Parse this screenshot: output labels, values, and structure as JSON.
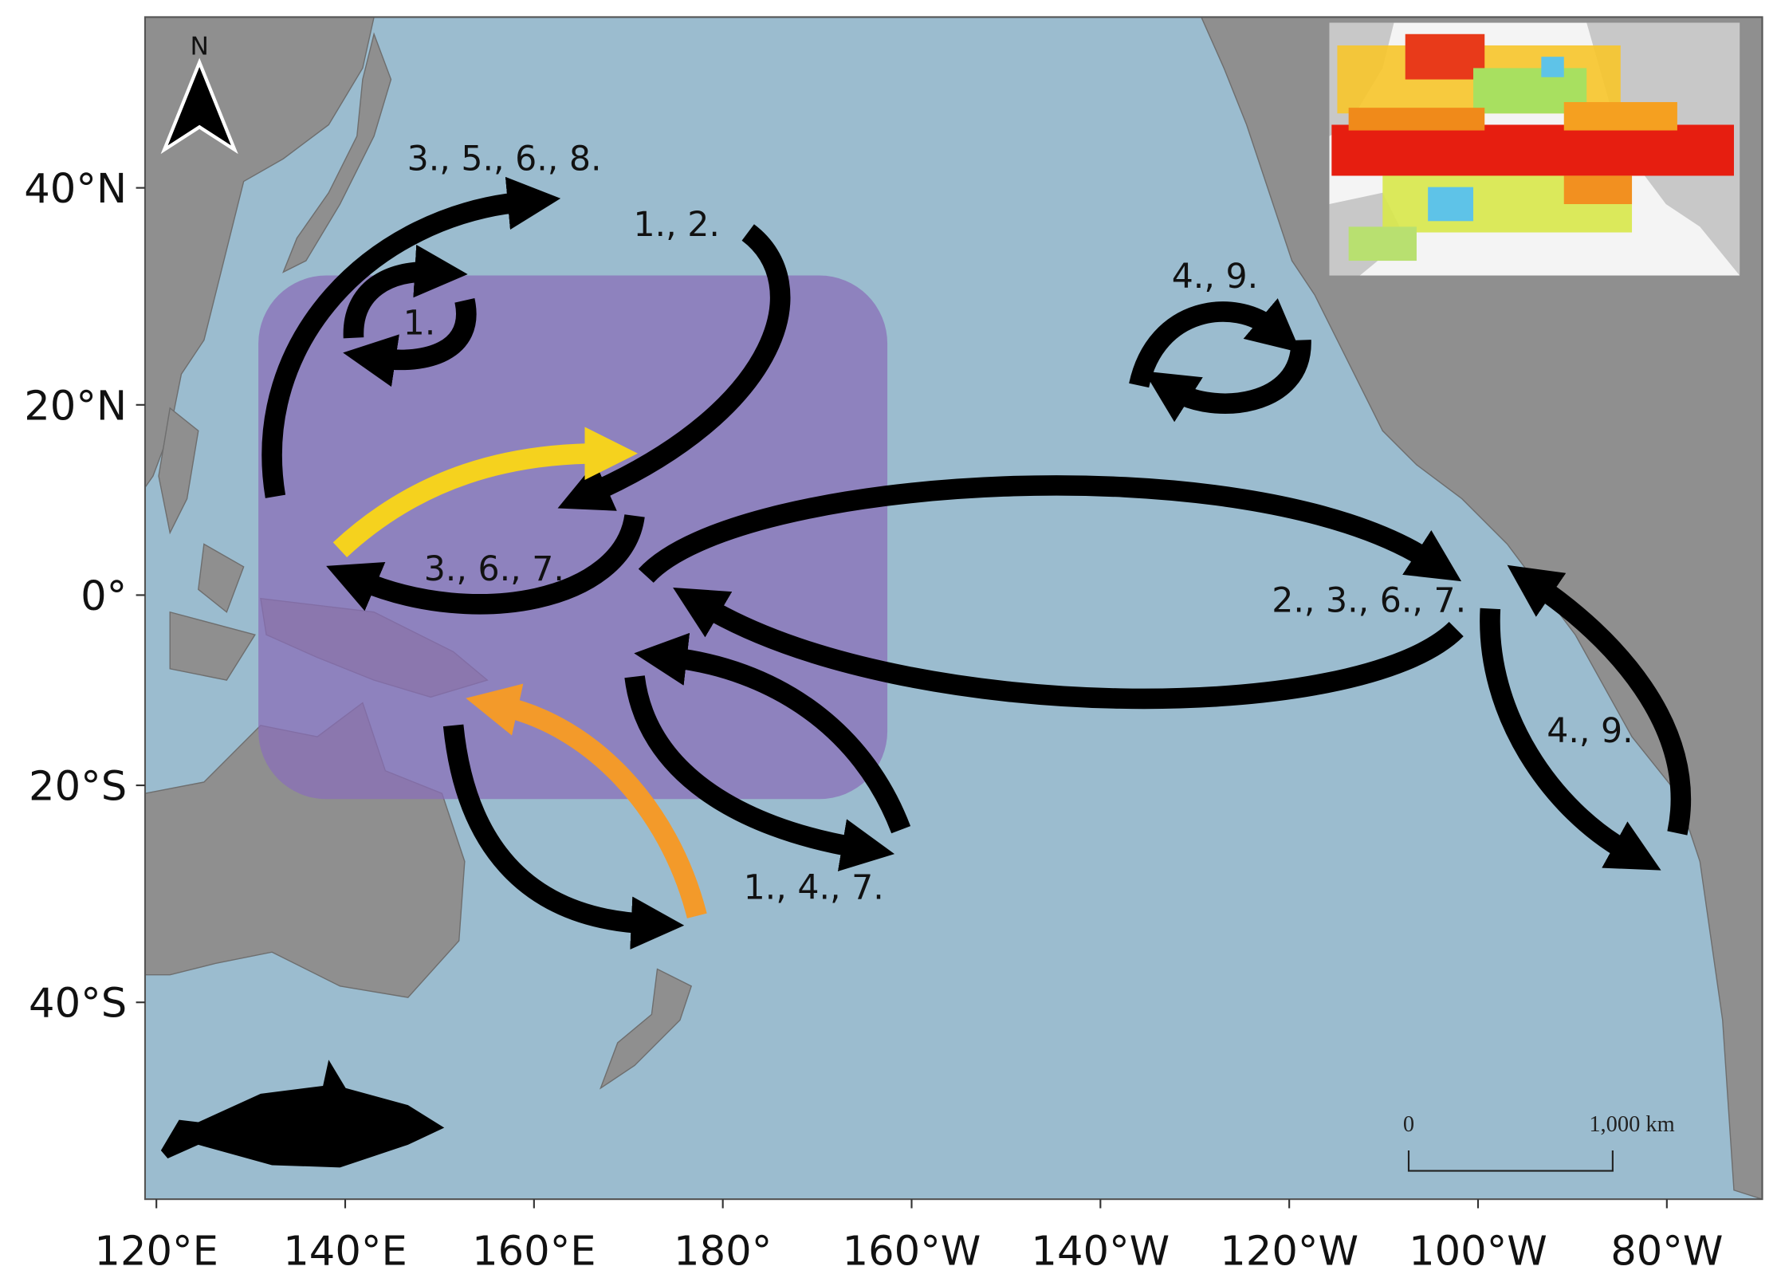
{
  "map": {
    "lat_ticks": [
      {
        "value": 40,
        "label": "40°N"
      },
      {
        "value": 20,
        "label": "20°N"
      },
      {
        "value": 0,
        "label": "0°"
      },
      {
        "value": -20,
        "label": "20°S"
      },
      {
        "value": -40,
        "label": "40°S"
      }
    ],
    "lon_ticks": [
      {
        "value": 120,
        "label": "120°E"
      },
      {
        "value": 140,
        "label": "140°E"
      },
      {
        "value": 160,
        "label": "160°E"
      },
      {
        "value": 180,
        "label": "180°"
      },
      {
        "value": -160,
        "label": "160°W"
      },
      {
        "value": -140,
        "label": "140°W"
      },
      {
        "value": -120,
        "label": "120°W"
      },
      {
        "value": -100,
        "label": "100°W"
      },
      {
        "value": -80,
        "label": "80°W"
      }
    ],
    "north_label": "N",
    "arrow_labels": [
      "3., 5., 6., 8.",
      "1., 2.",
      "1.",
      "4., 9.",
      "3., 6., 7.",
      "2., 3., 6., 7.",
      "4., 9.",
      "1., 4., 7."
    ],
    "scale_bar": {
      "start": "0",
      "end": "1,000 km"
    }
  }
}
